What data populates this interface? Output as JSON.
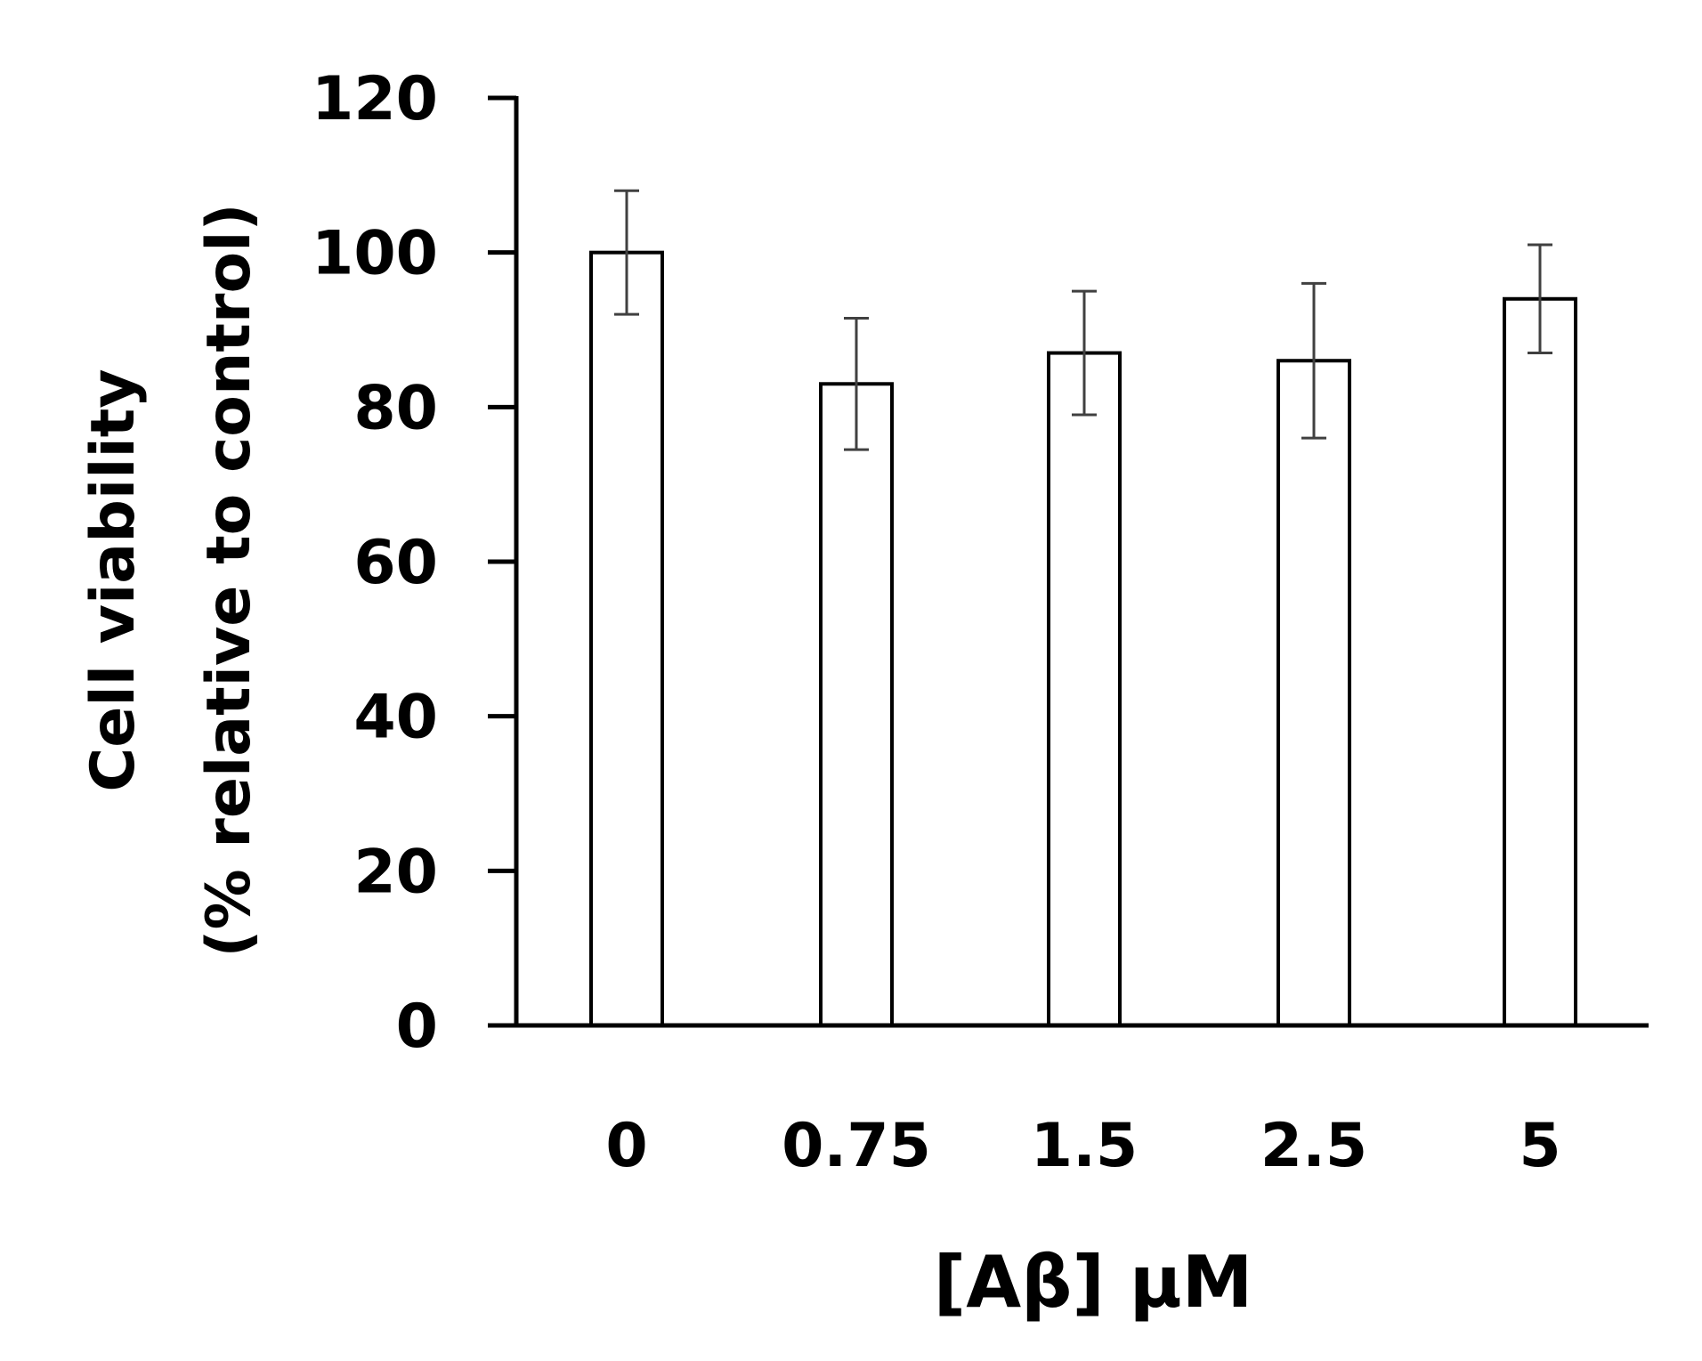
{
  "chart_data": {
    "type": "bar",
    "title": "",
    "xlabel": "[Aβ] μM",
    "ylabel_line1": "Cell viability",
    "ylabel_line2": "(% relative to control)",
    "categories": [
      "0",
      "0.75",
      "1.5",
      "2.5",
      "5"
    ],
    "values": [
      100,
      83,
      87,
      86,
      94
    ],
    "error": [
      8,
      8.5,
      8,
      10,
      7
    ],
    "ylim": [
      0,
      120
    ],
    "yticks": [
      0,
      20,
      40,
      60,
      80,
      100,
      120
    ],
    "grid": false,
    "legend": "none",
    "bar_fill": "#ffffff",
    "bar_stroke": "#000000",
    "errorbar_color": "#404040"
  }
}
